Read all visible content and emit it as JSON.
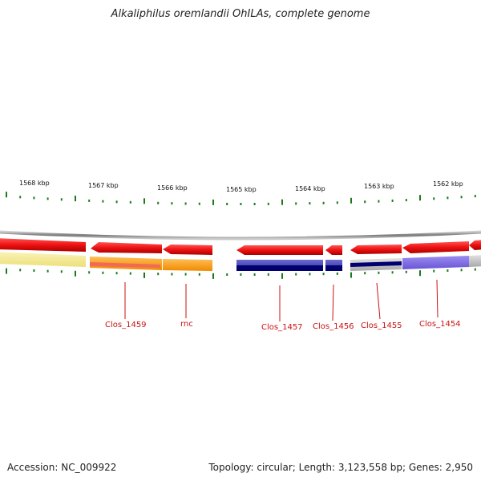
{
  "title": "Alkaliphilus oremlandii OhILAs, complete genome",
  "footer": {
    "accession": "Accession: NC_009922",
    "summary": "Topology: circular; Length: 3,123,558 bp; Genes: 2,950"
  },
  "scale": {
    "tick_labels": [
      "1568 kbp",
      "1567 kbp",
      "1566 kbp",
      "1565 kbp",
      "1564 kbp",
      "1563 kbp",
      "1562 kbp"
    ]
  },
  "genes": {
    "labels": [
      "Clos_1459",
      "rnc",
      "Clos_1457",
      "Clos_1456",
      "Clos_1455",
      "Clos_1454"
    ]
  },
  "colors": {
    "gene_arrow": "#ee1111",
    "tick": "#1a7a1a",
    "label": "#cc1111",
    "backbone": "#888888",
    "track_yellow": "#f3e890",
    "track_orange": "#ff9900",
    "track_blue": "#3333aa",
    "track_dark_blue": "#00006e",
    "track_lavender": "#7766dd",
    "track_gray": "#bbbbbb"
  }
}
